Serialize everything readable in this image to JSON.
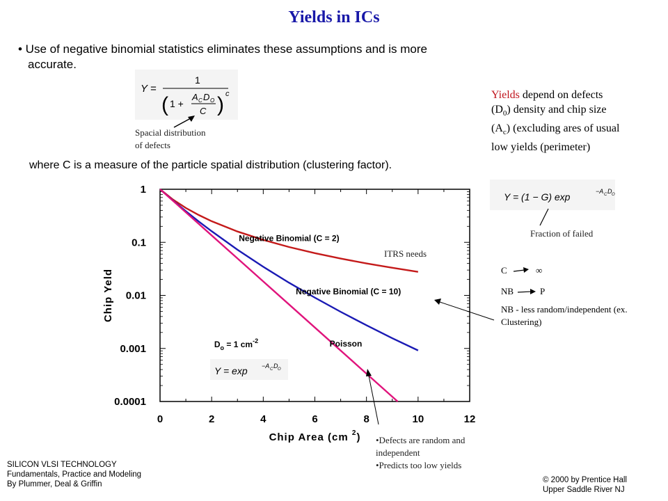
{
  "slide": {
    "title": "Yields in ICs",
    "bullet_line1": "• Use of negative binomial statistics eliminates these assumptions and is more",
    "bullet_line2": "accurate.",
    "where_text": "where C is a measure of the particle spatial distribution (clustering factor).",
    "spacial_note_line1": "Spacial distribution",
    "spacial_note_line2": "of defects",
    "side_note": {
      "highlight": "Yields",
      "rest_line1": " depend on defects",
      "line2_pre": "(D",
      "line2_sub": "0",
      "line2_post": ") density and chip size",
      "line3_pre": "(A",
      "line3_sub": "c",
      "line3_post": ") (excluding ares of usual",
      "line4": "low yields (perimeter)"
    },
    "fraction_failed": "Fraction of failed",
    "limit_note": {
      "c_label": "C",
      "infinity": "∞",
      "nb_label": "NB",
      "p_label": "P",
      "nb_desc_line1": "NB - less random/independent (ex.",
      "nb_desc_line2": "Clustering)"
    },
    "itrs_needs": "ITRS needs",
    "defects_note_line1": "•Defects are random and",
    "defects_note_line2": "independent",
    "defects_note_line3": "•Predicts too low yields",
    "footer_left": [
      "SILICON  VLSI TECHNOLOGY",
      "Fundamentals, Practice and Modeling",
      "By Plummer, Deal & Griffin"
    ],
    "footer_right": [
      "© 2000 by Prentice Hall",
      "Upper Saddle River NJ"
    ]
  },
  "equations": {
    "nb": {
      "lhs": "Y =",
      "num": "1",
      "paren_open": "(",
      "one_plus": "1 +",
      "frac_num_A": "A",
      "frac_num_A_sub": "C",
      "frac_num_D": "D",
      "frac_num_D_sub": "O",
      "frac_den": "C",
      "paren_close": ")",
      "exp": "c"
    },
    "fail": {
      "lhs": "Y = (1 − G) exp",
      "exp_prefix": "−A",
      "exp_A_sub": "C",
      "exp_D": "D",
      "exp_D_sub": "O"
    },
    "poisson": {
      "lhs": "Y = exp",
      "exp_prefix": "−A",
      "exp_A_sub": "C",
      "exp_D": "D",
      "exp_D_sub": "O"
    }
  },
  "chart_data": {
    "type": "line",
    "xlabel": "Chip Area (cm",
    "xlabel_sup": "2",
    "xlabel_close": ")",
    "ylabel": "Chip Yeld",
    "x_scale": "linear",
    "y_scale": "log",
    "xlim": [
      0,
      12
    ],
    "ylim": [
      0.0001,
      1
    ],
    "x_ticks": [
      "0",
      "2",
      "4",
      "6",
      "8",
      "10",
      "12"
    ],
    "y_ticks": [
      "1",
      "0.1",
      "0.01",
      "0.001",
      "0.0001"
    ],
    "d0_label": "D",
    "d0_sub": "o",
    "d0_rest": " = 1 cm",
    "d0_sup": "-2",
    "series": [
      {
        "name": "Negative Binomial (C = 2)",
        "color": "#c41a1a",
        "x": [
          0,
          0.5,
          1,
          1.5,
          2,
          3,
          4,
          5,
          6,
          7,
          8,
          9,
          10
        ],
        "y": [
          1,
          0.64,
          0.444,
          0.327,
          0.25,
          0.16,
          0.111,
          0.0816,
          0.0625,
          0.0494,
          0.04,
          0.0331,
          0.0278
        ]
      },
      {
        "name": "Negative Binomial (C = 10)",
        "color": "#1a1ab4",
        "x": [
          0,
          0.5,
          1,
          1.5,
          2,
          3,
          4,
          5,
          6,
          7,
          8,
          9,
          10
        ],
        "y": [
          1,
          0.614,
          0.386,
          0.247,
          0.162,
          0.0725,
          0.0346,
          0.0173,
          0.00906,
          0.0049,
          0.00273,
          0.00156,
          0.000917
        ]
      },
      {
        "name": "Poisson",
        "color": "#e0147c",
        "x": [
          0,
          1,
          2,
          3,
          4,
          5,
          6,
          7,
          8,
          9,
          9.21
        ],
        "y": [
          1,
          0.368,
          0.135,
          0.0498,
          0.0183,
          0.00674,
          0.00248,
          0.000912,
          0.000335,
          0.000123,
          0.0001
        ]
      }
    ]
  }
}
